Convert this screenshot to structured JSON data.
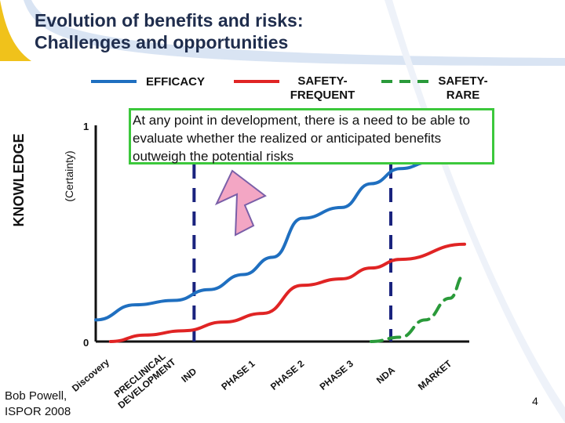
{
  "title": {
    "line1": "Evolution of benefits and risks:",
    "line2": "Challenges and opportunities"
  },
  "legend": [
    {
      "label": "EFFICACY",
      "color": "#1f6fc0",
      "style": "solid"
    },
    {
      "label": "SAFETY-FREQUENT",
      "line1": "SAFETY-",
      "line2": "FREQUENT",
      "color": "#e02424",
      "style": "solid"
    },
    {
      "label": "SAFETY-RARE",
      "line1": "SAFETY-",
      "line2": "RARE",
      "color": "#2a9a3a",
      "style": "dashed"
    }
  ],
  "callout": "At any point in development, there is a need to be able to evaluate whether the realized or anticipated benefits outweigh the potential risks",
  "axis": {
    "ylabel_main": "KNOWLEDGE",
    "ylabel_sub": "(Certainty)",
    "ytick_top": "1",
    "ytick_bottom": "0"
  },
  "author": {
    "line1": "Bob Powell,",
    "line2": "ISPOR 2008"
  },
  "page_number": "4",
  "colors": {
    "efficacy": "#1f6fc0",
    "safety_frequent": "#e02424",
    "safety_rare": "#2a9a3a",
    "milestone_line": "#1a237e",
    "arrow_fill": "#f3a6c4",
    "arrow_stroke": "#7a5fa8",
    "callout_border": "#3cc83c"
  },
  "chart_data": {
    "type": "line",
    "x_categories": [
      "Discovery",
      "PRECLINICAL DEVELOPMENT",
      "IND",
      "PHASE 1",
      "PHASE 2",
      "PHASE 3",
      "NDA",
      "MARKET"
    ],
    "stage_labels": [
      {
        "line1": "Discovery",
        "line2": ""
      },
      {
        "line1": "PRECLINICAL",
        "line2": "DEVELOPMENT"
      },
      {
        "line1": "IND",
        "line2": ""
      },
      {
        "line1": "PHASE 1",
        "line2": ""
      },
      {
        "line1": "PHASE 2",
        "line2": ""
      },
      {
        "line1": "PHASE 3",
        "line2": ""
      },
      {
        "line1": "NDA",
        "line2": ""
      },
      {
        "line1": "MARKET",
        "line2": ""
      }
    ],
    "ylim": [
      0,
      1
    ],
    "milestones": [
      "IND",
      "NDA"
    ],
    "series": [
      {
        "name": "EFFICACY",
        "style": "solid",
        "x": [
          0.0,
          0.8,
          1.6,
          2.3,
          3.0,
          3.6,
          4.2,
          5.0,
          5.6,
          6.2,
          6.8,
          7.5
        ],
        "y": [
          0.1,
          0.17,
          0.19,
          0.24,
          0.31,
          0.39,
          0.57,
          0.62,
          0.73,
          0.8,
          0.83,
          0.92
        ]
      },
      {
        "name": "SAFETY-FREQUENT",
        "style": "solid",
        "x": [
          0.3,
          1.0,
          1.8,
          2.6,
          3.4,
          4.2,
          5.0,
          5.6,
          6.2,
          7.5
        ],
        "y": [
          0.0,
          0.03,
          0.05,
          0.09,
          0.13,
          0.26,
          0.29,
          0.34,
          0.38,
          0.45
        ]
      },
      {
        "name": "SAFETY-RARE",
        "style": "dashed",
        "x": [
          5.6,
          6.2,
          6.7,
          7.2,
          7.5
        ],
        "y": [
          0.0,
          0.02,
          0.1,
          0.2,
          0.31
        ]
      }
    ]
  }
}
